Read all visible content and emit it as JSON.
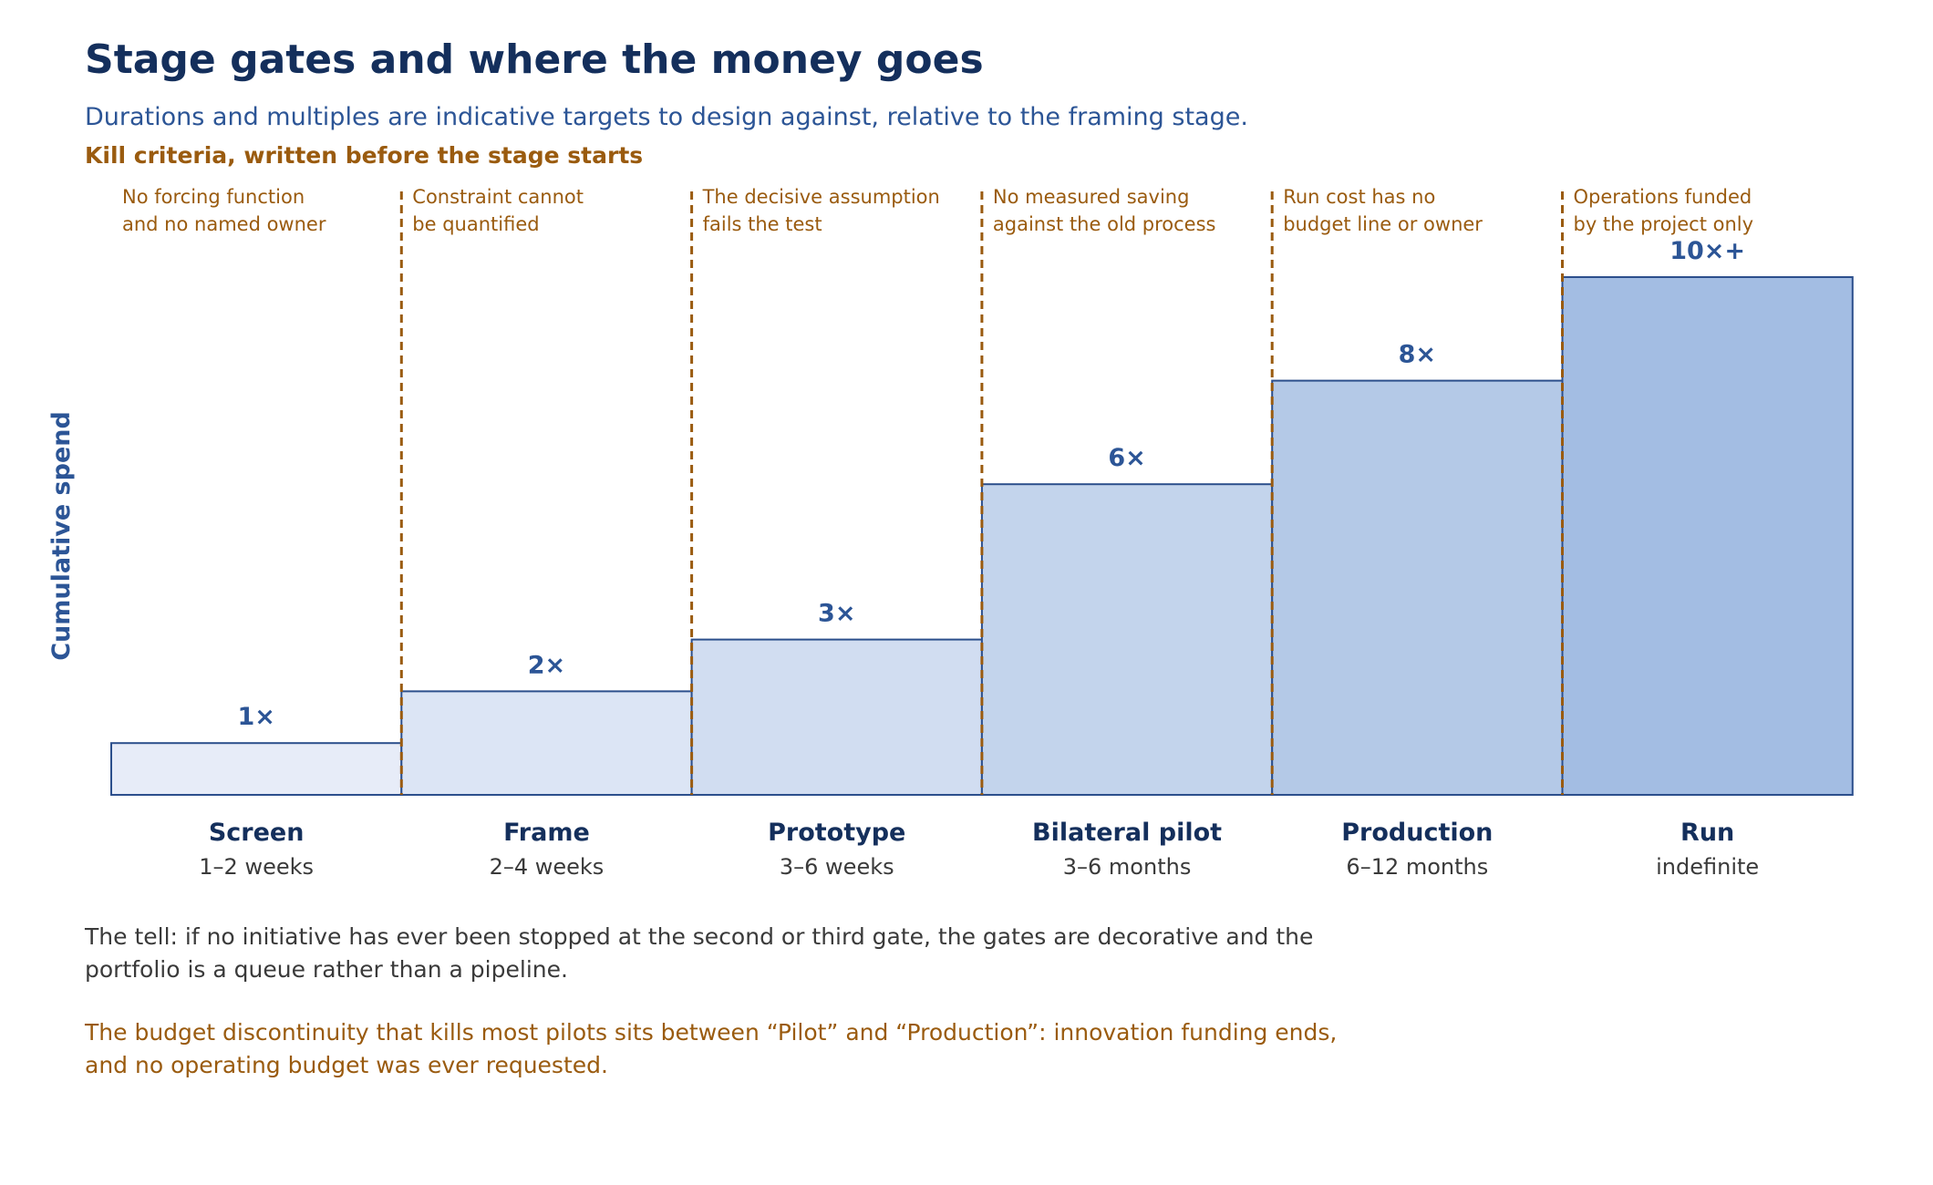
{
  "header": {
    "title": "Stage gates and where the money goes",
    "subtitle": "Durations and multiples are indicative targets to design against, relative to the framing stage.",
    "kill_heading": "Kill criteria, written before the stage starts"
  },
  "chart_data": {
    "type": "bar",
    "ylabel": "Cumulative spend",
    "categories": [
      "Screen",
      "Frame",
      "Prototype",
      "Bilateral pilot",
      "Production",
      "Run"
    ],
    "durations": [
      "1–2 weeks",
      "2–4 weeks",
      "3–6 weeks",
      "3–6 months",
      "6–12 months",
      "indefinite"
    ],
    "values": [
      1,
      2,
      3,
      6,
      8,
      10
    ],
    "value_labels": [
      "1×",
      "2×",
      "3×",
      "6×",
      "8×",
      "10×+"
    ],
    "ylim": [
      0,
      10
    ],
    "kill_criteria": [
      [
        "No forcing function",
        "and no named owner"
      ],
      [
        "Constraint cannot",
        "be quantified"
      ],
      [
        "The decisive assumption",
        "fails the test"
      ],
      [
        "No measured saving",
        "against the old process"
      ],
      [
        "Run cost has no",
        "budget line or owner"
      ],
      [
        "Operations funded",
        "by the project only"
      ]
    ],
    "colors": {
      "fills": [
        "#e7ecf8",
        "#dce5f5",
        "#d1ddf1",
        "#c3d4ec",
        "#b4c9e7",
        "#a3bde3"
      ],
      "bar_stroke": "#2c4f8c",
      "value_label": "#2c5596",
      "category_label": "#142f5c",
      "duration_label": "#3a3a3a",
      "gate_line": "#9a5b0f",
      "kill_text": "#9a5b0f",
      "axis_label": "#2c5596"
    }
  },
  "notes": {
    "tell": [
      "The tell: if no initiative has ever been stopped at the second or third gate, the gates are decorative and the",
      "portfolio is a queue rather than a pipeline."
    ],
    "budget": [
      "The budget discontinuity that kills most pilots sits between “Pilot” and “Production”: innovation funding ends,",
      "and no operating budget was ever requested."
    ]
  }
}
